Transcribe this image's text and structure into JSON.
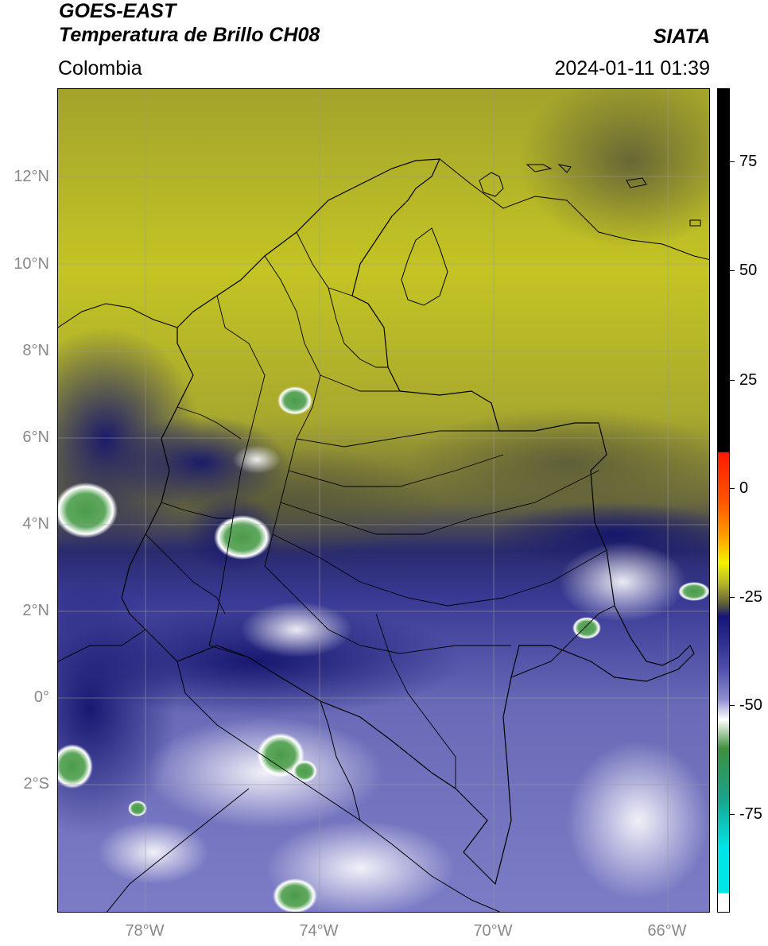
{
  "header": {
    "satellite": "GOES-EAST",
    "product": "Temperatura de Brillo CH08",
    "brand": "SIATA",
    "region": "Colombia",
    "timestamp": "2024-01-11 01:39"
  },
  "map": {
    "lat_labels": [
      "12°N",
      "10°N",
      "8°N",
      "6°N",
      "4°N",
      "2°N",
      "0°",
      "2°S"
    ],
    "lon_labels": [
      "78°W",
      "74°W",
      "70°W",
      "66°W"
    ]
  },
  "colorbar": {
    "labels": [
      "75",
      "50",
      "25",
      "0",
      "-25",
      "-50",
      "-75"
    ],
    "colors": {
      "black": "#000000",
      "red": "#ff1a00",
      "orange": "#ff9900",
      "yellow": "#f2f200",
      "olive": "#b5b52a",
      "dark_olive": "#5c5c3a",
      "navy": "#14147a",
      "lavender": "#8c8cd0",
      "white": "#ffffff",
      "green": "#3f8f3f",
      "teal": "#1aa38a",
      "cyan": "#00e5e5"
    }
  }
}
